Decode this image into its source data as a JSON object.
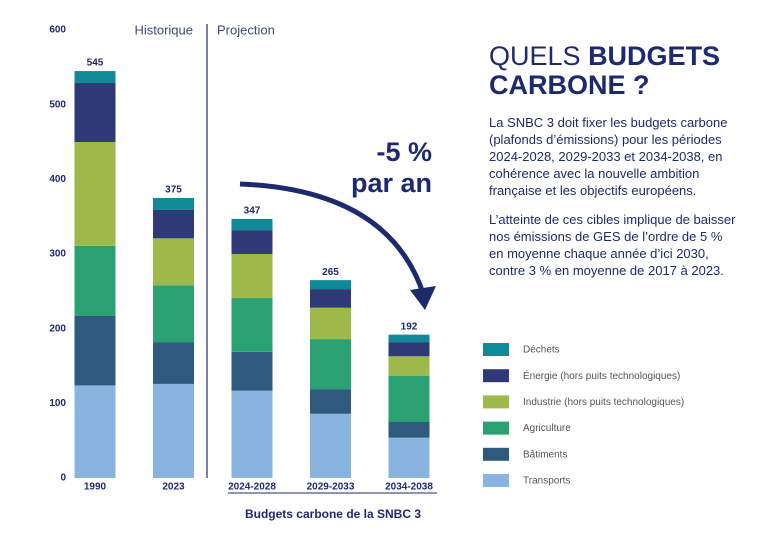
{
  "chart_data": {
    "type": "stacked_bar",
    "categories": [
      "1990",
      "2023",
      "2024-2028",
      "2029-2033",
      "2034-2038"
    ],
    "series": [
      {
        "name": "Transports",
        "color": "#8ab4e0",
        "values": [
          124,
          126,
          117,
          86,
          54
        ]
      },
      {
        "name": "Bâtiments",
        "color": "#2f5a7e",
        "values": [
          93,
          56,
          52,
          33,
          21
        ]
      },
      {
        "name": "Agriculture",
        "color": "#2aa173",
        "values": [
          94,
          76,
          72,
          67,
          62
        ]
      },
      {
        "name": "Industrie (hors puits technologiques)",
        "color": "#9db94a",
        "values": [
          139,
          63,
          59,
          42,
          26
        ]
      },
      {
        "name": "Énergie (hors puits technologiques)",
        "color": "#2e3a78",
        "values": [
          79,
          38,
          32,
          25,
          19
        ]
      },
      {
        "name": "Déchets",
        "color": "#0f8a96",
        "values": [
          16,
          16,
          15,
          12,
          10
        ]
      }
    ],
    "totals": [
      545,
      375,
      347,
      265,
      192
    ],
    "ylim": [
      0,
      600
    ],
    "yticks": [
      0,
      100,
      200,
      300,
      400,
      500,
      600
    ],
    "grid": false,
    "period_labels": [
      "Historique",
      "Projection"
    ],
    "trend_label": [
      "-5 %",
      "par an"
    ],
    "group_label": "Budgets carbone de la SNBC 3"
  },
  "text_panel": {
    "heading_light": "QUELS",
    "heading_bold": "BUDGETS CARBONE ?",
    "paragraphs": [
      "La SNBC 3 doit fixer les budgets carbone (plafonds d’émissions) pour les périodes 2024-2028, 2029-2033 et 2034-2038, en cohérence avec la nouvelle ambition française et les objectifs européens.",
      "L’atteinte de ces cibles implique de baisser nos émissions de GES de l’ordre de 5 % en moyenne chaque année d’ici 2030, contre 3 % en moyenne de 2017 à 2023."
    ]
  }
}
